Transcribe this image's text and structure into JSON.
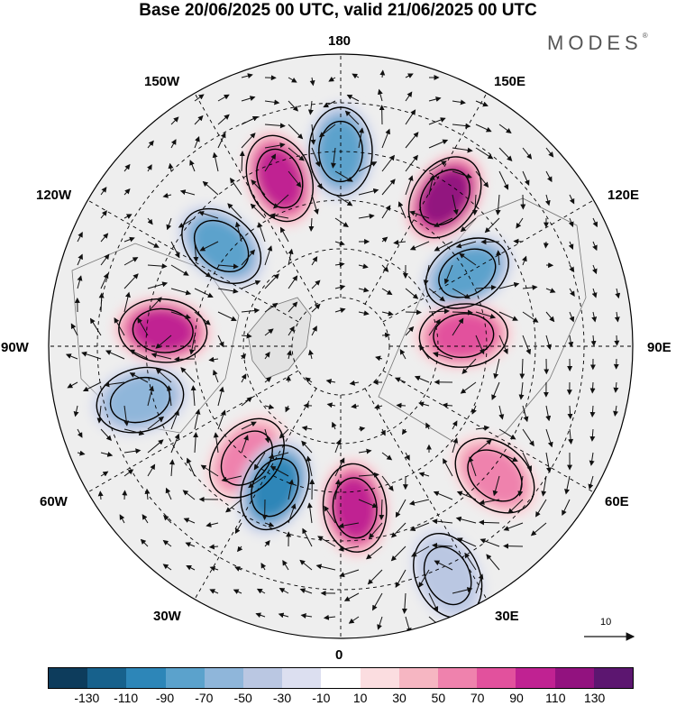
{
  "title": "Base 20/06/2025 00 UTC, valid 21/06/2025 00 UTC",
  "brand": "MODES",
  "brand_mark": "®",
  "longitude_labels": {
    "top": "180",
    "top_left": "150W",
    "top_right": "150E",
    "upper_left": "120W",
    "upper_right": "120E",
    "left": "90W",
    "right": "90E",
    "lower_left": "60W",
    "lower_right": "60E",
    "bottom_left": "30W",
    "bottom_right": "30E",
    "bottom": "0"
  },
  "reference_vector_label": "10",
  "colorbar": {
    "colors": [
      "#0d3c5c",
      "#17618c",
      "#2d86b8",
      "#5ba2cc",
      "#8fb6da",
      "#bac7e2",
      "#dcdff0",
      "#ffffff",
      "#fbdde0",
      "#f6b6c2",
      "#ef82ad",
      "#e2519d",
      "#c02292",
      "#92127f",
      "#5c1670"
    ],
    "labels": [
      "-130",
      "-110",
      "-90",
      "-70",
      "-50",
      "-30",
      "-10",
      "10",
      "30",
      "50",
      "70",
      "90",
      "110",
      "130"
    ]
  },
  "anomaly_centers": [
    {
      "lon_deg": 180,
      "colat_deg": 60,
      "value": -70
    },
    {
      "lon_deg": -160,
      "colat_deg": 55,
      "value": 90
    },
    {
      "lon_deg": 145,
      "colat_deg": 56,
      "value": 110
    },
    {
      "lon_deg": -130,
      "colat_deg": 48,
      "value": -70
    },
    {
      "lon_deg": 120,
      "colat_deg": 45,
      "value": -70
    },
    {
      "lon_deg": -95,
      "colat_deg": 55,
      "value": 90
    },
    {
      "lon_deg": 95,
      "colat_deg": 38,
      "value": 70
    },
    {
      "lon_deg": -75,
      "colat_deg": 64,
      "value": -50
    },
    {
      "lon_deg": -40,
      "colat_deg": 45,
      "value": 50
    },
    {
      "lon_deg": -25,
      "colat_deg": 48,
      "value": -90
    },
    {
      "lon_deg": 5,
      "colat_deg": 50,
      "value": 90
    },
    {
      "lon_deg": 50,
      "colat_deg": 62,
      "value": 50
    },
    {
      "lon_deg": 25,
      "colat_deg": 78,
      "value": -30
    }
  ]
}
